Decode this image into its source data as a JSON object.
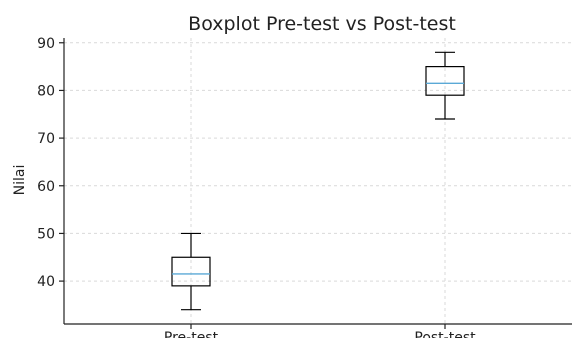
{
  "chart_data": {
    "type": "boxplot",
    "title": "Boxplot Pre-test vs Post-test",
    "xlabel": "",
    "ylabel": "Nilai",
    "ylim": [
      31,
      91
    ],
    "yticks": [
      40,
      50,
      60,
      70,
      80,
      90
    ],
    "categories": [
      "Pre-test",
      "Post-test"
    ],
    "boxes": [
      {
        "category": "Pre-test",
        "min": 34,
        "q1": 39,
        "median": 41.5,
        "q3": 45,
        "max": 50
      },
      {
        "category": "Post-test",
        "min": 74,
        "q1": 79,
        "median": 81.5,
        "q3": 85,
        "max": 88
      }
    ],
    "grid": true,
    "median_color": "#5aa9d6"
  }
}
